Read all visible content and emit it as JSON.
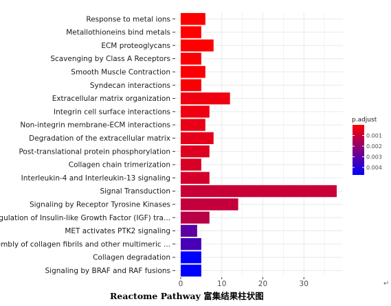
{
  "caption": "Reactome Pathway 富集结果柱状图",
  "return_mark": "↵",
  "chart_data": {
    "type": "bar",
    "orientation": "horizontal",
    "title": "",
    "xlabel": "",
    "ylabel": "",
    "xlim": [
      0,
      40
    ],
    "x_ticks": [
      0,
      10,
      20,
      30
    ],
    "grid": true,
    "categories": [
      "Response to metal ions",
      "Metallothioneins bind metals",
      "ECM proteoglycans",
      "Scavenging by Class A Receptors",
      "Smooth Muscle Contraction",
      "Syndecan interactions",
      "Extracellular matrix organization",
      "Integrin cell surface interactions",
      "Non-integrin membrane-ECM interactions",
      "Degradation of the extracellular matrix",
      "Post-translational protein phosphorylation",
      "Collagen chain trimerization",
      "Interleukin-4 and Interleukin-13 signaling",
      "Signal Transduction",
      "Signaling by Receptor Tyrosine Kinases",
      "Regulation of Insulin-like Growth Factor (IGF) tra...",
      "MET activates PTK2 signaling",
      "Assembly of collagen fibrils and other multimeric ...",
      "Collagen degradation",
      "Signaling by BRAF and RAF fusions"
    ],
    "values": [
      6,
      5,
      8,
      5,
      6,
      5,
      12,
      7,
      6,
      8,
      7,
      5,
      7,
      38,
      14,
      7,
      4,
      5,
      5,
      5
    ],
    "p_adjust": [
      0.0,
      0.0,
      0.0,
      0.0001,
      0.0001,
      0.0001,
      0.0003,
      0.0003,
      0.0004,
      0.0005,
      0.0006,
      0.0007,
      0.0008,
      0.001,
      0.0011,
      0.0013,
      0.003,
      0.0034,
      0.0047,
      0.0047
    ],
    "legend": {
      "title": "p.adjust",
      "placement": "right",
      "range": [
        0,
        0.0047
      ],
      "ticks": [
        0.001,
        0.002,
        0.003,
        0.004
      ],
      "tick_labels": [
        "0.001",
        "0.002",
        "0.003",
        "0.004"
      ],
      "colors": {
        "low": "#ff0000",
        "high": "#0000ff"
      }
    },
    "panel_background": "#ffffff",
    "grid_color": "#ebebeb"
  }
}
